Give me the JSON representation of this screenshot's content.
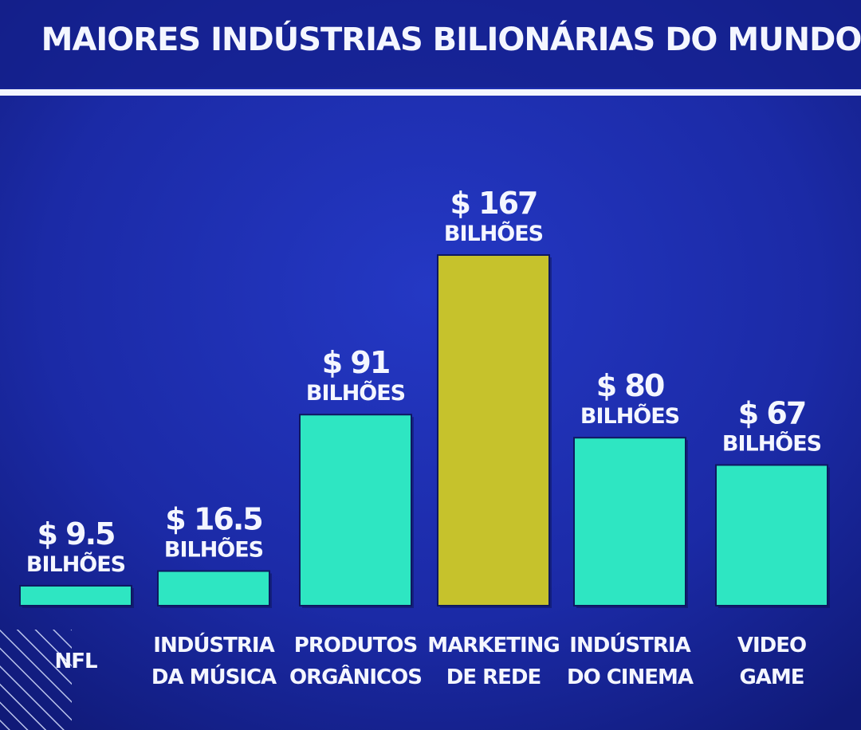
{
  "chart_data": {
    "type": "bar",
    "title": "MAIORES INDÚSTRIAS BILIONÁRIAS DO MUNDO",
    "categories": [
      [
        "NFL"
      ],
      [
        "INDÚSTRIA",
        "DA MÚSICA"
      ],
      [
        "PRODUTOS",
        "ORGÂNICOS"
      ],
      [
        "MARKETING",
        "DE REDE"
      ],
      [
        "INDÚSTRIA",
        "DO CINEMA"
      ],
      [
        "VIDEO",
        "GAME"
      ]
    ],
    "values": [
      9.5,
      16.5,
      91,
      167,
      80,
      67
    ],
    "value_labels": [
      "$ 9.5",
      "$ 16.5",
      "$ 91",
      "$ 167",
      "$ 80",
      "$ 67"
    ],
    "unit_label": "BILHÕES",
    "bar_colors": [
      "#2ee6c2",
      "#2ee6c2",
      "#2ee6c2",
      "#c6c22c",
      "#2ee6c2",
      "#2ee6c2"
    ],
    "background_color": "#1a2a9e"
  }
}
